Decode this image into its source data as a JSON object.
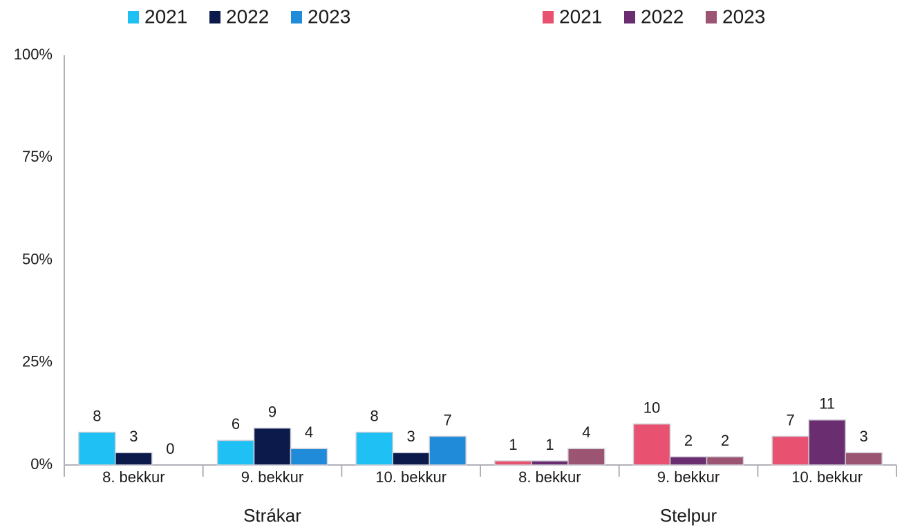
{
  "chart_data": {
    "type": "bar",
    "categories": [
      "8. bekkur",
      "9. bekkur",
      "10. bekkur"
    ],
    "groups": [
      {
        "name": "Strákar",
        "series": [
          {
            "name": "2021",
            "color": "#1fc1f4",
            "values": [
              8,
              6,
              8
            ]
          },
          {
            "name": "2022",
            "color": "#0b1a4b",
            "values": [
              3,
              9,
              3
            ]
          },
          {
            "name": "2023",
            "color": "#1f8bd9",
            "values": [
              0,
              4,
              7
            ]
          }
        ]
      },
      {
        "name": "Stelpur",
        "series": [
          {
            "name": "2021",
            "color": "#e8516f",
            "values": [
              1,
              10,
              7
            ]
          },
          {
            "name": "2022",
            "color": "#6a2d6f",
            "values": [
              1,
              2,
              11
            ]
          },
          {
            "name": "2023",
            "color": "#9b5572",
            "values": [
              4,
              2,
              3
            ]
          }
        ]
      }
    ],
    "ylim": [
      0,
      100
    ],
    "yticks": [
      {
        "value": 0,
        "label": "0%"
      },
      {
        "value": 25,
        "label": "25%"
      },
      {
        "value": 50,
        "label": "50%"
      },
      {
        "value": 75,
        "label": "75%"
      },
      {
        "value": 100,
        "label": "100%"
      }
    ]
  }
}
